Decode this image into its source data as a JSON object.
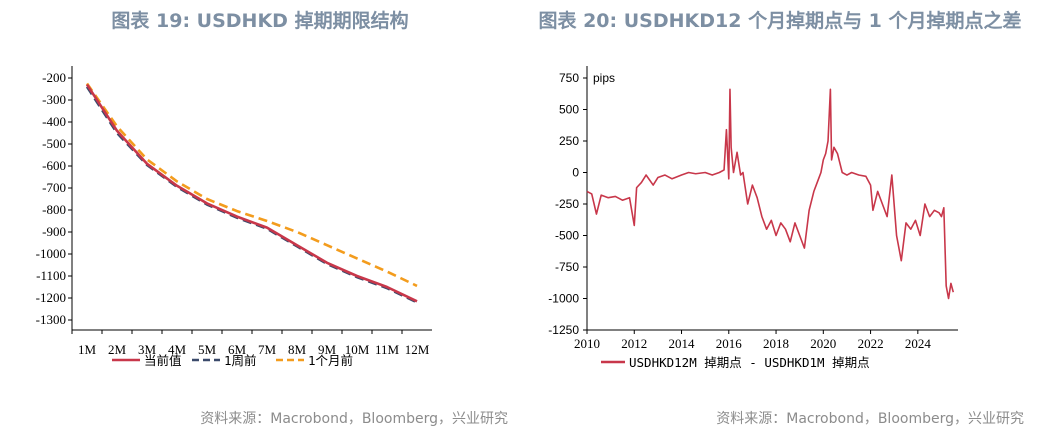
{
  "titles": {
    "left": "图表 19: USDHKD 掉期期限结构",
    "right": "图表 20: USDHKD12 个月掉期点与 1 个月掉期点之差"
  },
  "sources": {
    "left": "资料来源：Macrobond，Bloomberg，兴业研究",
    "right": "资料来源：Macrobond，Bloomberg，兴业研究"
  },
  "colors": {
    "current": "#c8374a",
    "week": "#3b4a6b",
    "month": "#f39c1d",
    "spread": "#c8374a"
  },
  "chart_data": [
    {
      "type": "line",
      "categories": [
        "1M",
        "2M",
        "3M",
        "4M",
        "5M",
        "6M",
        "7M",
        "8M",
        "9M",
        "10M",
        "11M",
        "12M"
      ],
      "ylim": [
        -1300,
        -200
      ],
      "yticks": [
        -200,
        -300,
        -400,
        -500,
        -600,
        -700,
        -800,
        -900,
        -1000,
        -1100,
        -1200,
        -1300
      ],
      "series": [
        {
          "name": "当前值",
          "style": "solid",
          "values": [
            -230,
            -440,
            -590,
            -690,
            -770,
            -830,
            -880,
            -960,
            -1040,
            -1100,
            -1150,
            -1215
          ]
        },
        {
          "name": "1周前",
          "style": "dashed",
          "values": [
            -240,
            -450,
            -595,
            -695,
            -775,
            -835,
            -885,
            -965,
            -1045,
            -1105,
            -1155,
            -1220
          ]
        },
        {
          "name": "1个月前",
          "style": "dashed",
          "values": [
            -225,
            -420,
            -570,
            -670,
            -750,
            -805,
            -850,
            -900,
            -960,
            -1020,
            -1080,
            -1145
          ]
        }
      ]
    },
    {
      "type": "line",
      "ylabel": "pips",
      "ylim": [
        -1250,
        750
      ],
      "yticks": [
        750,
        500,
        250,
        0,
        -250,
        -500,
        -750,
        -1000,
        -1250
      ],
      "xlim": [
        2010,
        2025.7
      ],
      "xticks": [
        2010,
        2012,
        2014,
        2016,
        2018,
        2020,
        2022,
        2024
      ],
      "series": [
        {
          "name": "USDHKD12M 掉期点 - USDHKD1M 掉期点",
          "x": [
            2010.0,
            2010.2,
            2010.4,
            2010.6,
            2010.9,
            2011.2,
            2011.5,
            2011.8,
            2012.0,
            2012.1,
            2012.3,
            2012.5,
            2012.8,
            2013.0,
            2013.3,
            2013.6,
            2014.0,
            2014.3,
            2014.6,
            2015.0,
            2015.3,
            2015.6,
            2015.8,
            2015.9,
            2016.0,
            2016.05,
            2016.1,
            2016.2,
            2016.35,
            2016.5,
            2016.6,
            2016.8,
            2017.0,
            2017.2,
            2017.4,
            2017.6,
            2017.8,
            2018.0,
            2018.2,
            2018.4,
            2018.6,
            2018.8,
            2019.0,
            2019.2,
            2019.4,
            2019.6,
            2019.8,
            2019.9,
            2020.0,
            2020.1,
            2020.2,
            2020.3,
            2020.35,
            2020.45,
            2020.6,
            2020.8,
            2021.0,
            2021.2,
            2021.5,
            2021.8,
            2022.0,
            2022.1,
            2022.3,
            2022.5,
            2022.7,
            2022.9,
            2023.1,
            2023.3,
            2023.5,
            2023.7,
            2023.9,
            2024.1,
            2024.3,
            2024.5,
            2024.7,
            2024.9,
            2025.0,
            2025.1,
            2025.2,
            2025.3,
            2025.4,
            2025.5
          ],
          "values": [
            -150,
            -170,
            -330,
            -180,
            -200,
            -190,
            -220,
            -200,
            -420,
            -120,
            -80,
            -20,
            -100,
            -40,
            -20,
            -50,
            -20,
            0,
            -10,
            0,
            -20,
            0,
            20,
            340,
            -50,
            660,
            200,
            0,
            160,
            -20,
            0,
            -250,
            -100,
            -200,
            -350,
            -450,
            -380,
            -500,
            -400,
            -450,
            -550,
            -400,
            -500,
            -600,
            -300,
            -150,
            -50,
            0,
            100,
            150,
            250,
            660,
            100,
            200,
            150,
            0,
            -20,
            0,
            -20,
            -30,
            -100,
            -300,
            -150,
            -250,
            -350,
            -20,
            -500,
            -700,
            -400,
            -450,
            -380,
            -500,
            -250,
            -350,
            -300,
            -320,
            -350,
            -280,
            -900,
            -1000,
            -880,
            -950
          ]
        }
      ]
    }
  ]
}
